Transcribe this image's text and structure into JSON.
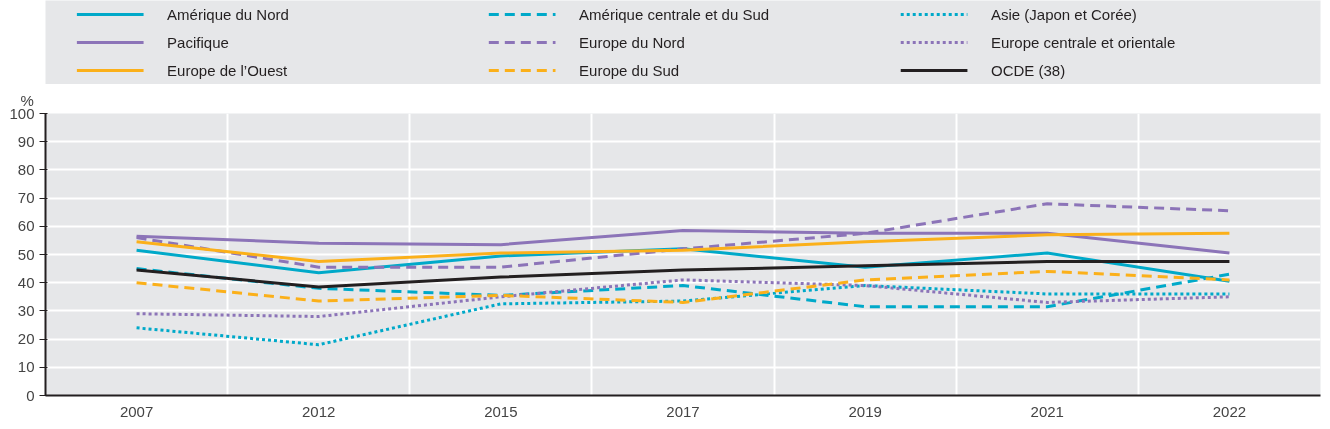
{
  "chart_data": {
    "type": "line",
    "ylabel": "%",
    "categories": [
      "2007",
      "2012",
      "2015",
      "2017",
      "2019",
      "2021",
      "2022"
    ],
    "ylim": [
      0,
      100
    ],
    "yticks": [
      0,
      10,
      20,
      30,
      40,
      50,
      60,
      70,
      80,
      90,
      100
    ],
    "grid": true,
    "legend": "top",
    "marker": "none",
    "series": [
      {
        "name": "Amérique du Nord",
        "color": "#00a9c9",
        "line_style": "solid",
        "values": [
          51.5,
          43.5,
          49.5,
          52,
          45.5,
          50.5,
          40.5
        ]
      },
      {
        "name": "Amérique centrale et du Sud",
        "color": "#00a9c9",
        "line_style": "dashed",
        "values": [
          45,
          38,
          35.5,
          39,
          31.5,
          31.5,
          43
        ]
      },
      {
        "name": "Asie (Japon et Corée)",
        "color": "#00a9c9",
        "line_style": "dotted",
        "values": [
          24,
          18,
          32.5,
          33.5,
          39,
          36,
          36
        ]
      },
      {
        "name": "Pacifique",
        "color": "#8c74b8",
        "line_style": "solid",
        "values": [
          56.5,
          54,
          53.5,
          58.5,
          57.5,
          57.5,
          50.5
        ]
      },
      {
        "name": "Europe du Nord",
        "color": "#8c74b8",
        "line_style": "dashed",
        "values": [
          56,
          45.5,
          45.5,
          52,
          57.5,
          68,
          65.5
        ]
      },
      {
        "name": "Europe centrale et orientale",
        "color": "#8c74b8",
        "line_style": "dotted",
        "values": [
          29,
          28,
          35,
          41,
          39,
          33,
          35
        ]
      },
      {
        "name": "Europe de l’Ouest",
        "color": "#fbb01a",
        "line_style": "solid",
        "values": [
          54.5,
          47.5,
          50.5,
          51.5,
          54.5,
          57,
          57.5
        ]
      },
      {
        "name": "Europe du Sud",
        "color": "#fbb01a",
        "line_style": "dashed",
        "values": [
          40,
          33.5,
          35.5,
          33,
          41,
          44,
          41
        ]
      },
      {
        "name": "OCDE (38)",
        "color": "#231f20",
        "line_style": "solid",
        "values": [
          44.5,
          38.5,
          42,
          44.5,
          46,
          47.5,
          47.5
        ]
      }
    ]
  }
}
